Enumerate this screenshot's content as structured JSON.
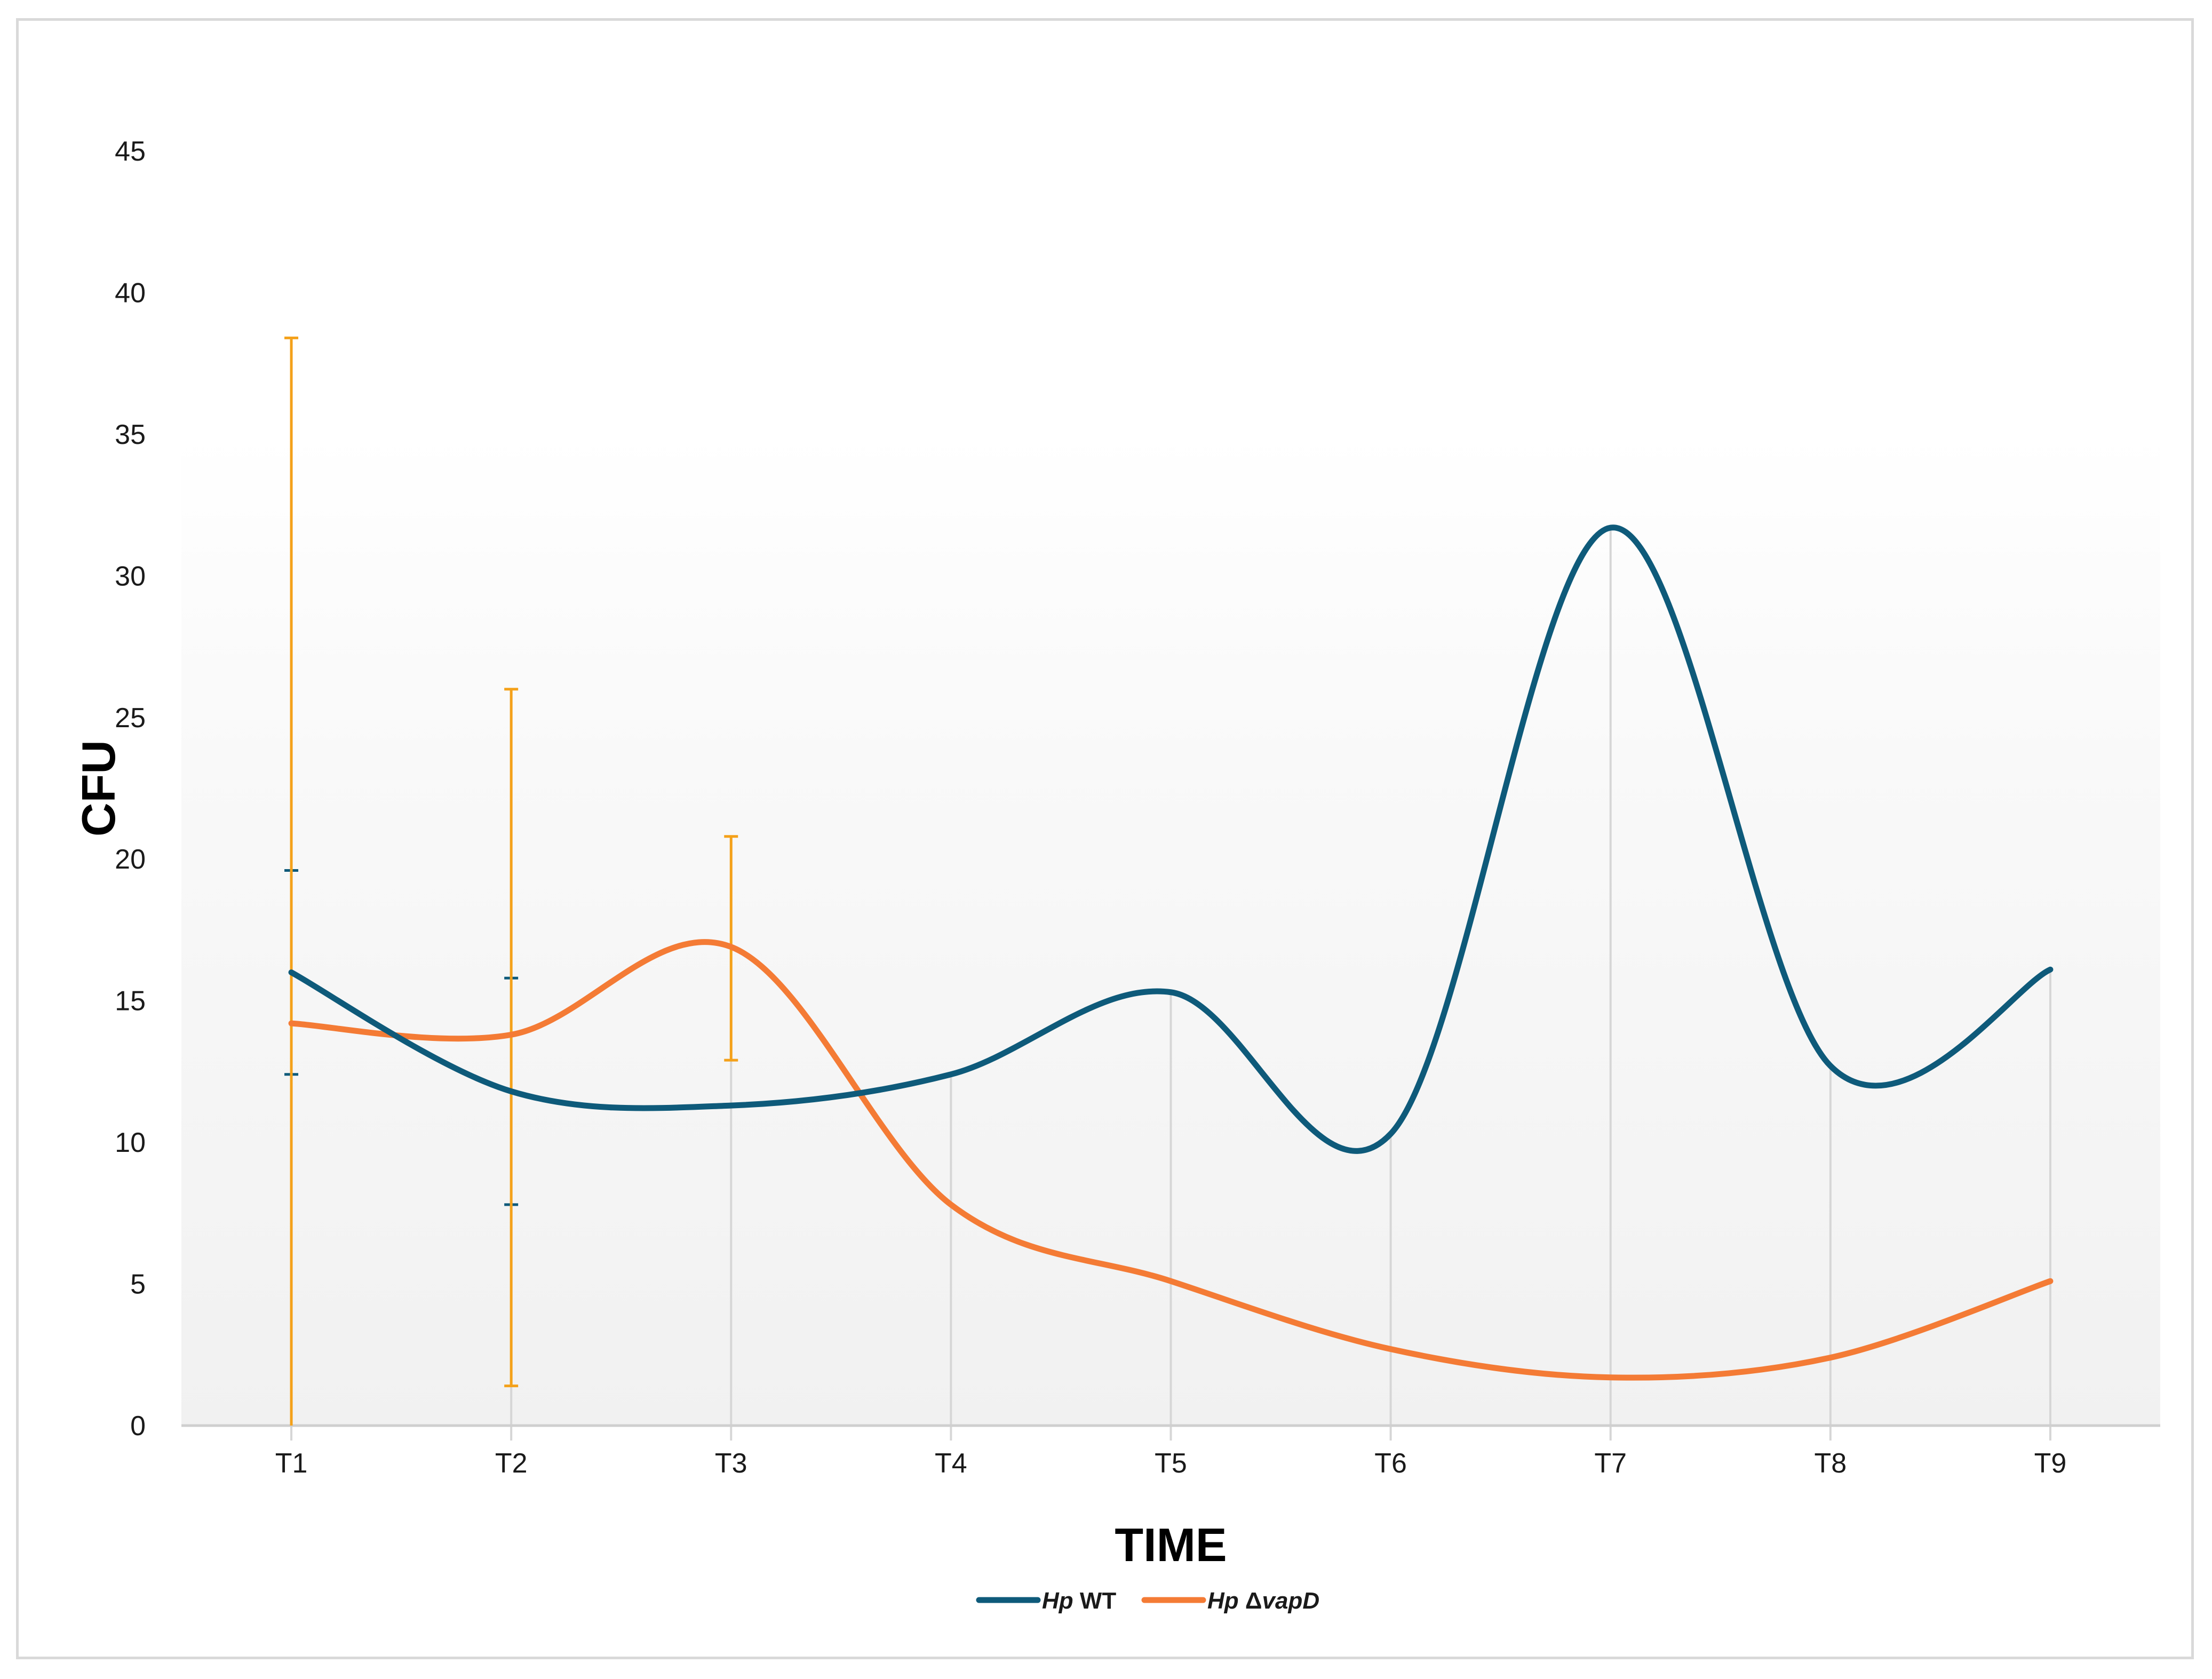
{
  "chart_data": {
    "type": "line",
    "xlabel": "TIME",
    "ylabel": "CFU",
    "categories": [
      "T1",
      "T2",
      "T3",
      "T4",
      "T5",
      "T6",
      "T7",
      "T8",
      "T9"
    ],
    "ylim": [
      0,
      45
    ],
    "yticks": [
      0,
      5,
      10,
      15,
      20,
      25,
      30,
      35,
      40,
      45
    ],
    "grid": "vertical lines at categories",
    "smooth": true,
    "legend_position": "bottom-center",
    "series": [
      {
        "name_italic": "Hp",
        "name_rest": " WT",
        "color": "#0e5a7a",
        "values": [
          16.0,
          11.8,
          11.3,
          12.4,
          15.3,
          10.3,
          31.7,
          12.7,
          16.1
        ],
        "error_low": [
          12.4,
          7.8,
          null,
          null,
          null,
          null,
          null,
          null,
          null
        ],
        "error_high": [
          19.6,
          15.8,
          null,
          null,
          null,
          null,
          null,
          null,
          null
        ]
      },
      {
        "name_italic": "Hp",
        "name_rest": " Δ",
        "name_italic_2": "vapD",
        "color": "#f47b35",
        "error_color": "#f4a11a",
        "values": [
          14.2,
          13.8,
          16.9,
          7.8,
          5.1,
          2.7,
          1.7,
          2.4,
          5.1
        ],
        "error_low": [
          0,
          1.4,
          12.9,
          null,
          null,
          null,
          null,
          null,
          null
        ],
        "error_high": [
          38.4,
          26.0,
          20.8,
          null,
          null,
          null,
          null,
          null,
          null
        ]
      }
    ]
  }
}
